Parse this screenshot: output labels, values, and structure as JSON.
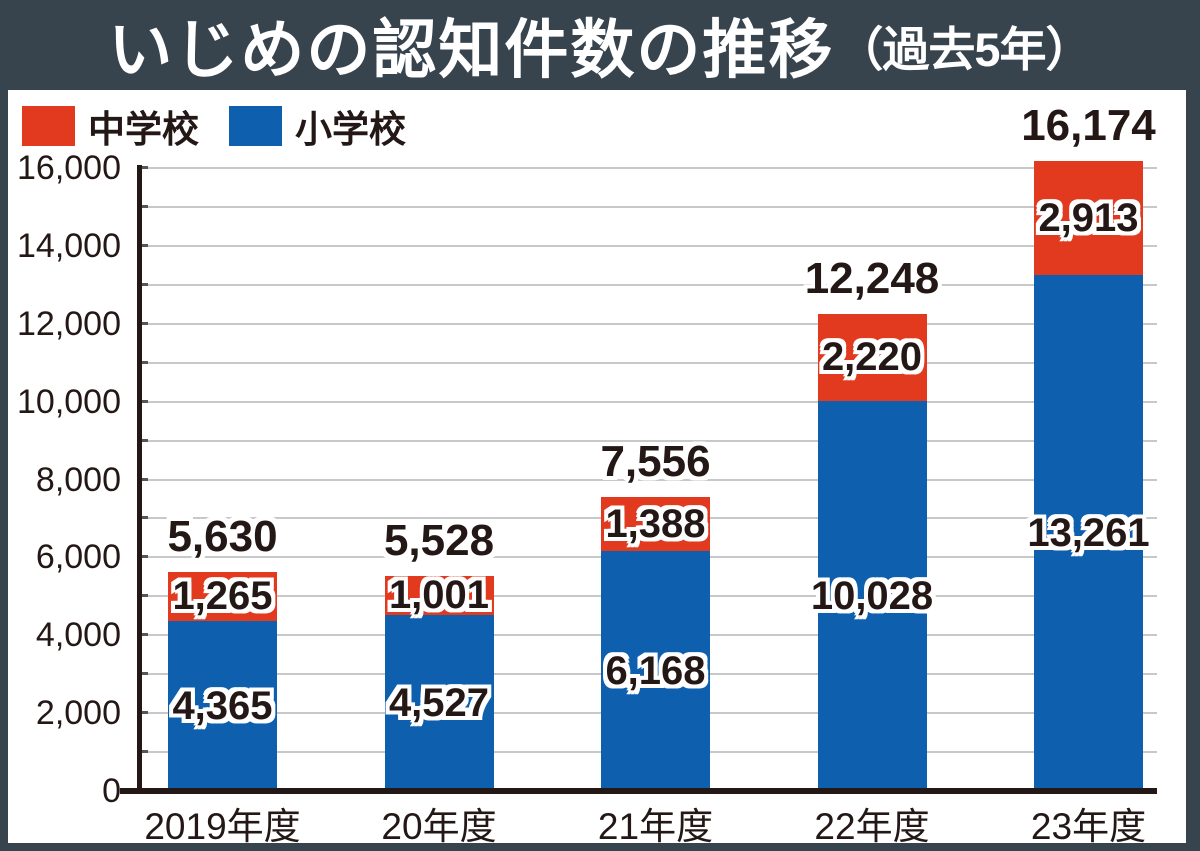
{
  "title": {
    "main": "いじめの認知件数の推移",
    "suffix": "（過去5年）"
  },
  "legend": [
    {
      "label": "中学校",
      "color": "#e23a1f"
    },
    {
      "label": "小学校",
      "color": "#0e5fae"
    }
  ],
  "colors": {
    "frame": "#37434d",
    "panel": "#ffffff",
    "grid": "#c8c8c8",
    "axis": "#231815",
    "text": "#231815",
    "junior_high_red": "#e23a1f",
    "elementary_blue": "#0e5fae"
  },
  "chart_data": {
    "type": "bar",
    "stacked": true,
    "title": "いじめの認知件数の推移（過去5年）",
    "categories": [
      "2019年度",
      "20年度",
      "21年度",
      "22年度",
      "23年度"
    ],
    "series": [
      {
        "name": "中学校",
        "color": "#e23a1f",
        "values": [
          1265,
          1001,
          1388,
          2220,
          2913
        ],
        "labels": [
          "1,265",
          "1,001",
          "1,388",
          "2,220",
          "2,913"
        ]
      },
      {
        "name": "小学校",
        "color": "#0e5fae",
        "values": [
          4365,
          4527,
          6168,
          10028,
          13261
        ],
        "labels": [
          "4,365",
          "4,527",
          "6,168",
          "10,028",
          "13,261"
        ]
      }
    ],
    "totals": [
      5630,
      5528,
      7556,
      12248,
      16174
    ],
    "total_labels": [
      "5,630",
      "5,528",
      "7,556",
      "12,248",
      "16,174"
    ],
    "xlabel": "",
    "ylabel": "",
    "ylim": [
      0,
      16000
    ],
    "y_major_ticks": [
      0,
      2000,
      4000,
      6000,
      8000,
      10000,
      12000,
      14000,
      16000
    ],
    "y_major_tick_labels": [
      "0",
      "2,000",
      "4,000",
      "6,000",
      "8,000",
      "10,000",
      "12,000",
      "14,000",
      "16,000"
    ],
    "y_minor_step": 1000,
    "grid": true,
    "legend_position": "top-left",
    "bar_stack_order_bottom_to_top": [
      "小学校",
      "中学校"
    ]
  }
}
